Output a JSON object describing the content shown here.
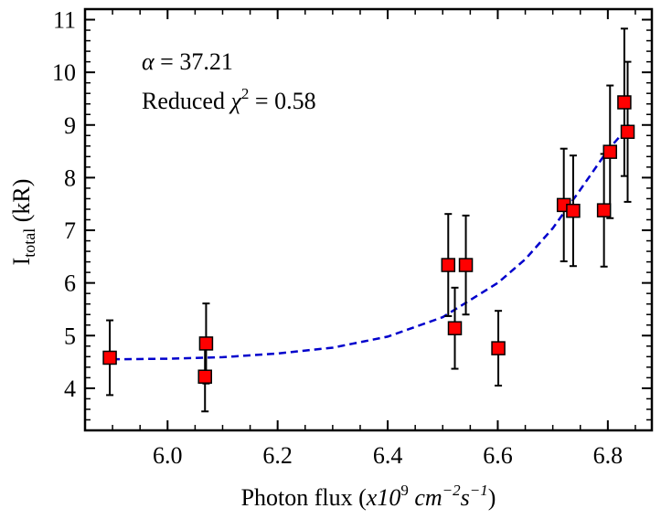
{
  "chart_data": {
    "type": "scatter",
    "title": "",
    "xlabel": {
      "main": "Photon flux (",
      "mult": "x10",
      "mult_exp": "9",
      "unit1": "cm",
      "unit1_exp": "−2",
      "unit2": "s",
      "unit2_exp": "−1",
      "close": ")"
    },
    "ylabel": {
      "main": "I",
      "sub": "total",
      "unit": " (kR)"
    },
    "xlim": [
      5.85,
      6.88
    ],
    "ylim": [
      3.2,
      11.2
    ],
    "xticks": [
      6.0,
      6.2,
      6.4,
      6.6,
      6.8
    ],
    "xtick_labels": [
      "6.0",
      "6.2",
      "6.4",
      "6.6",
      "6.8"
    ],
    "yticks": [
      4,
      5,
      6,
      7,
      8,
      9,
      10,
      11
    ],
    "ytick_labels": [
      "4",
      "5",
      "6",
      "7",
      "8",
      "9",
      "10",
      "11"
    ],
    "x_minor_step": 0.05,
    "y_minor_step": 0.2,
    "grid": false,
    "series": [
      {
        "name": "data",
        "marker": "square",
        "color": "#ff0000",
        "edge_color": "#000000",
        "x": [
          5.895,
          6.068,
          6.07,
          6.51,
          6.522,
          6.542,
          6.601,
          6.72,
          6.737,
          6.793,
          6.804,
          6.83,
          6.836
        ],
        "y": [
          4.58,
          4.22,
          4.85,
          6.34,
          5.14,
          6.34,
          4.76,
          7.48,
          7.37,
          7.38,
          8.49,
          9.43,
          8.87
        ],
        "err": [
          0.71,
          0.66,
          0.76,
          0.97,
          0.77,
          0.94,
          0.71,
          1.07,
          1.05,
          1.07,
          1.26,
          1.4,
          1.33
        ]
      }
    ],
    "fit": {
      "name": "fit",
      "style": "dashed",
      "color": "#0000cc",
      "x": [
        5.9,
        6.0,
        6.1,
        6.2,
        6.3,
        6.4,
        6.5,
        6.6,
        6.65,
        6.7,
        6.75,
        6.8,
        6.84
      ],
      "y": [
        4.55,
        4.56,
        4.59,
        4.66,
        4.77,
        4.98,
        5.35,
        6.0,
        6.45,
        7.04,
        7.77,
        8.52,
        9.0
      ]
    },
    "annotations": {
      "alpha_symbol": "α",
      "alpha_value": " = 37.21",
      "chi_prefix": "Reduced ",
      "chi_symbol": "χ",
      "chi_exp": "2",
      "chi_value": " = 0.58"
    }
  }
}
